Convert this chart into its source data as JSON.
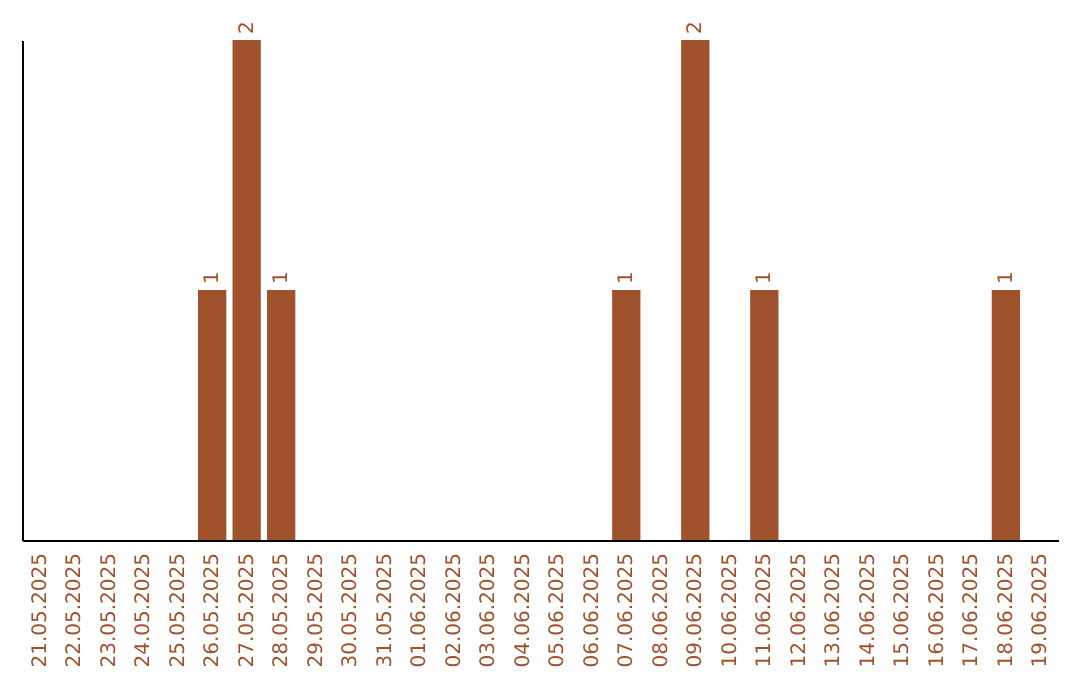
{
  "chart_data": {
    "type": "bar",
    "categories": [
      "21.05.2025",
      "22.05.2025",
      "23.05.2025",
      "24.05.2025",
      "25.05.2025",
      "26.05.2025",
      "27.05.2025",
      "28.05.2025",
      "29.05.2025",
      "30.05.2025",
      "31.05.2025",
      "01.06.2025",
      "02.06.2025",
      "03.06.2025",
      "04.06.2025",
      "05.06.2025",
      "06.06.2025",
      "07.06.2025",
      "08.06.2025",
      "09.06.2025",
      "10.06.2025",
      "11.06.2025",
      "12.06.2025",
      "13.06.2025",
      "14.06.2025",
      "15.06.2025",
      "16.06.2025",
      "17.06.2025",
      "18.06.2025",
      "19.06.2025"
    ],
    "values": [
      0,
      0,
      0,
      0,
      0,
      1,
      2,
      1,
      0,
      0,
      0,
      0,
      0,
      0,
      0,
      0,
      0,
      1,
      0,
      2,
      0,
      1,
      0,
      0,
      0,
      0,
      0,
      0,
      1,
      0
    ],
    "value_labels": [
      null,
      null,
      null,
      null,
      null,
      "1",
      "2",
      "1",
      null,
      null,
      null,
      null,
      null,
      null,
      null,
      null,
      null,
      "1",
      null,
      "2",
      null,
      "1",
      null,
      null,
      null,
      null,
      null,
      null,
      "1",
      null
    ],
    "color": "#a0522d",
    "tick_labels": "x",
    "grid": false
  }
}
